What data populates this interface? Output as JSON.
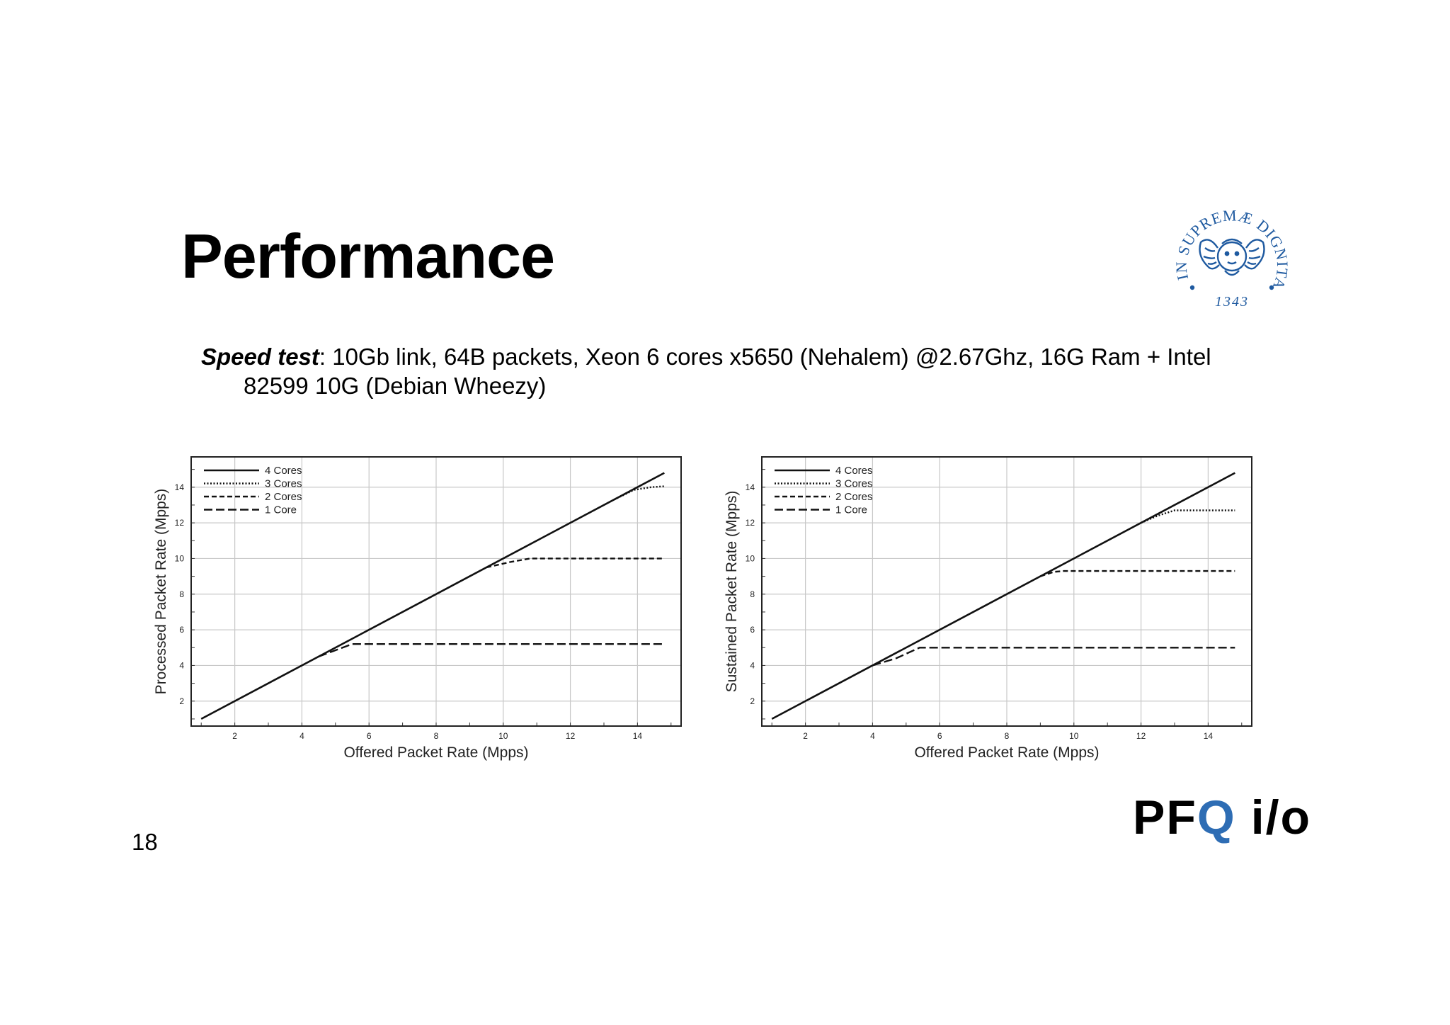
{
  "slide": {
    "title": "Performance",
    "subtitle_lead": "Speed test",
    "subtitle_rest_line1": ": 10Gb link,  64B packets, Xeon 6 cores x5650 (Nehalem) @2.67Ghz, 16G Ram + Intel",
    "subtitle_line2": "82599 10G (Debian Wheezy)",
    "page_number": "18"
  },
  "logo": {
    "seal_text": "IN SUPREMÆ DIGNITATIS",
    "seal_year": "1343",
    "seal_color": "#1f5aa0",
    "brand_prefix": "PF",
    "brand_q": "Q",
    "brand_suffix": " i/o",
    "brand_q_color": "#2e6db4"
  },
  "chart_data": [
    {
      "type": "line",
      "xlabel": "Offered Packet Rate (Mpps)",
      "ylabel": "Processed Packet Rate (Mpps)",
      "xlim": [
        0.7,
        15.3
      ],
      "ylim": [
        0.6,
        15.7
      ],
      "xticks": [
        2,
        4,
        6,
        8,
        10,
        12,
        14
      ],
      "yticks": [
        2,
        4,
        6,
        8,
        10,
        12,
        14
      ],
      "grid": true,
      "legend": "top-left",
      "series": [
        {
          "name": "4 Cores",
          "style": "solid",
          "points": [
            [
              1,
              1
            ],
            [
              14.8,
              14.8
            ]
          ]
        },
        {
          "name": "3 Cores",
          "style": "dotted",
          "points": [
            [
              13.3,
              13.3
            ],
            [
              13.9,
              13.85
            ],
            [
              14.4,
              14.0
            ],
            [
              14.8,
              14.05
            ]
          ]
        },
        {
          "name": "2 Cores",
          "style": "dashed",
          "points": [
            [
              9.5,
              9.5
            ],
            [
              10.2,
              9.8
            ],
            [
              10.8,
              10.0
            ],
            [
              14.8,
              10.0
            ]
          ]
        },
        {
          "name": "1 Core",
          "style": "longdash",
          "points": [
            [
              4.5,
              4.5
            ],
            [
              5.0,
              4.85
            ],
            [
              5.5,
              5.2
            ],
            [
              14.8,
              5.2
            ]
          ]
        }
      ]
    },
    {
      "type": "line",
      "xlabel": "Offered Packet Rate (Mpps)",
      "ylabel": "Sustained Packet Rate (Mpps)",
      "xlim": [
        0.7,
        15.3
      ],
      "ylim": [
        0.6,
        15.7
      ],
      "xticks": [
        2,
        4,
        6,
        8,
        10,
        12,
        14
      ],
      "yticks": [
        2,
        4,
        6,
        8,
        10,
        12,
        14
      ],
      "grid": true,
      "legend": "top-left",
      "series": [
        {
          "name": "4 Cores",
          "style": "solid",
          "points": [
            [
              1,
              1
            ],
            [
              14.8,
              14.8
            ]
          ]
        },
        {
          "name": "3 Cores",
          "style": "dotted",
          "points": [
            [
              12.0,
              12.0
            ],
            [
              12.5,
              12.4
            ],
            [
              13.0,
              12.7
            ],
            [
              14.8,
              12.7
            ]
          ]
        },
        {
          "name": "2 Cores",
          "style": "dashed",
          "points": [
            [
              9.0,
              9.0
            ],
            [
              9.4,
              9.25
            ],
            [
              9.7,
              9.3
            ],
            [
              14.8,
              9.3
            ]
          ]
        },
        {
          "name": "1 Core",
          "style": "longdash",
          "points": [
            [
              4.0,
              4.0
            ],
            [
              4.7,
              4.4
            ],
            [
              5.4,
              5.0
            ],
            [
              14.8,
              5.0
            ]
          ]
        }
      ]
    }
  ]
}
